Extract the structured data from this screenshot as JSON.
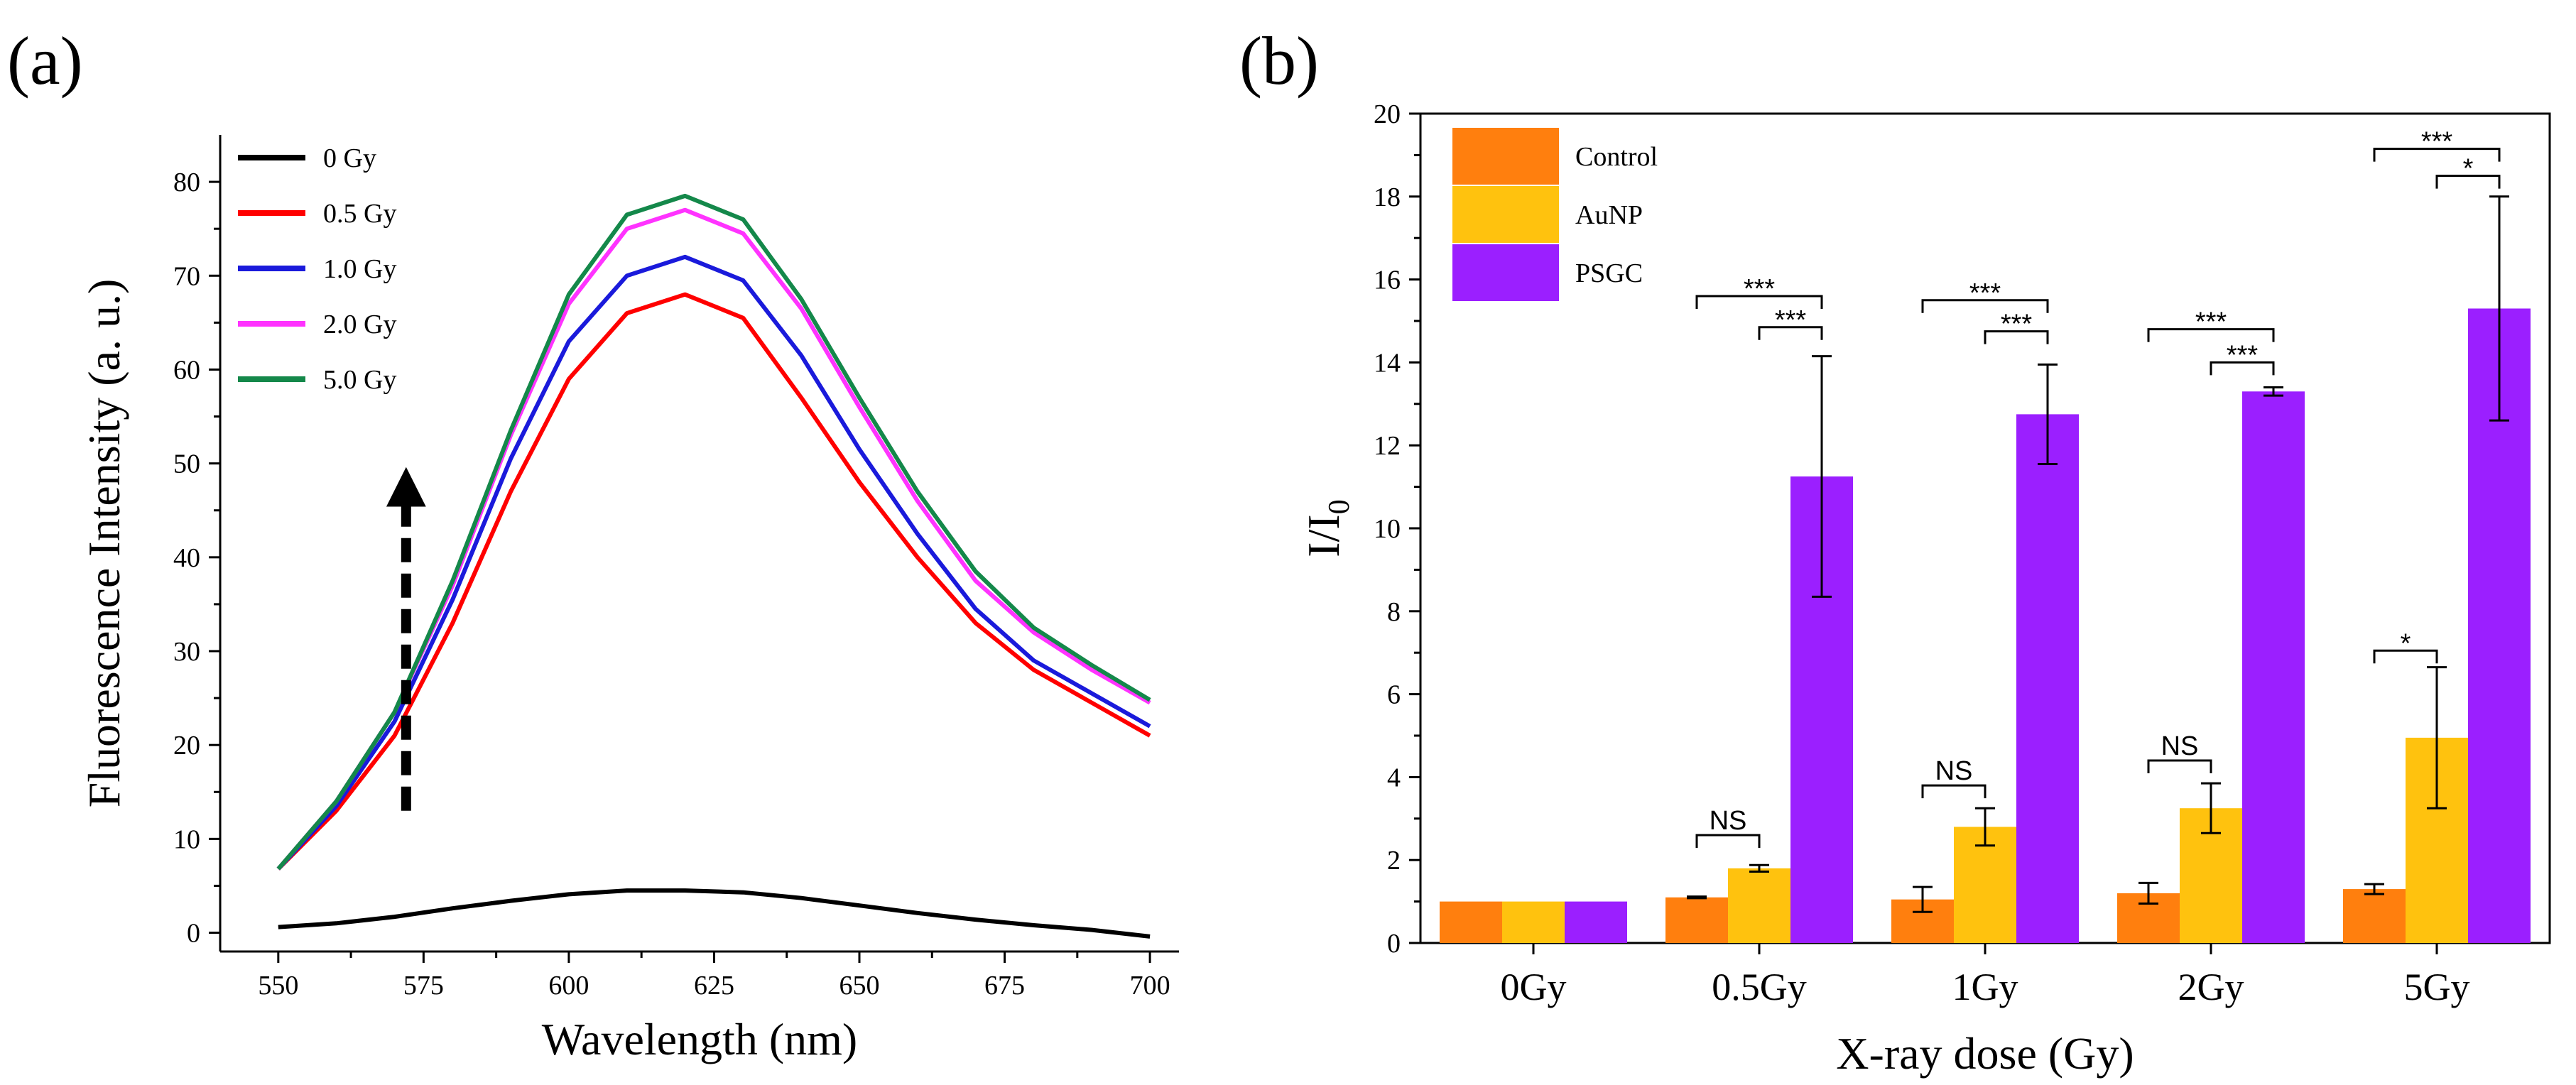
{
  "chart_data": [
    {
      "panel": "(a)",
      "type": "line",
      "xlabel": "Wavelength (nm)",
      "ylabel": "Fluorescence Intensity (a. u.)",
      "xlim": [
        540,
        705
      ],
      "ylim": [
        -2,
        85
      ],
      "xticks": [
        550,
        575,
        600,
        625,
        650,
        675,
        700
      ],
      "yticks": [
        0,
        10,
        20,
        30,
        40,
        50,
        60,
        70,
        80
      ],
      "legend_position": "top-left",
      "annotation": "dashed upward arrow at 572 nm from 13 to 49 (increasing dose)",
      "series": [
        {
          "name": "0 Gy",
          "color": "#000000",
          "x": [
            550,
            560,
            570,
            580,
            590,
            600,
            610,
            620,
            630,
            640,
            650,
            660,
            670,
            680,
            690,
            700
          ],
          "y": [
            0.6,
            1.0,
            1.7,
            2.6,
            3.4,
            4.1,
            4.5,
            4.5,
            4.3,
            3.7,
            2.9,
            2.1,
            1.4,
            0.8,
            0.3,
            -0.4
          ]
        },
        {
          "name": "0.5 Gy",
          "color": "#ff0000",
          "x": [
            550,
            560,
            570,
            580,
            590,
            600,
            610,
            620,
            630,
            640,
            650,
            660,
            670,
            680,
            690,
            700
          ],
          "y": [
            6.8,
            13.0,
            21.0,
            33.0,
            47.0,
            59.0,
            66.0,
            68.0,
            65.5,
            57.0,
            48.0,
            40.0,
            33.0,
            28.0,
            24.5,
            21.0
          ]
        },
        {
          "name": "1.0 Gy",
          "color": "#1a1adb",
          "x": [
            550,
            560,
            570,
            580,
            590,
            600,
            610,
            620,
            630,
            640,
            650,
            660,
            670,
            680,
            690,
            700
          ],
          "y": [
            6.8,
            13.5,
            22.5,
            35.5,
            50.5,
            63.0,
            70.0,
            72.0,
            69.5,
            61.5,
            51.5,
            42.5,
            34.5,
            29.0,
            25.5,
            22.0
          ]
        },
        {
          "name": "2.0 Gy",
          "color": "#ff33ff",
          "x": [
            550,
            560,
            570,
            580,
            590,
            600,
            610,
            620,
            630,
            640,
            650,
            660,
            670,
            680,
            690,
            700
          ],
          "y": [
            6.8,
            14.0,
            23.5,
            37.0,
            53.0,
            67.0,
            75.0,
            77.0,
            74.5,
            66.5,
            56.0,
            46.0,
            37.5,
            32.0,
            28.0,
            24.5
          ]
        },
        {
          "name": "5.0 Gy",
          "color": "#14884a",
          "x": [
            550,
            560,
            570,
            580,
            590,
            600,
            610,
            620,
            630,
            640,
            650,
            660,
            670,
            680,
            690,
            700
          ],
          "y": [
            6.8,
            14.0,
            23.5,
            37.5,
            53.5,
            68.0,
            76.5,
            78.5,
            76.0,
            67.5,
            57.0,
            47.0,
            38.5,
            32.5,
            28.5,
            24.8
          ]
        }
      ]
    },
    {
      "panel": "(b)",
      "type": "bar",
      "xlabel": "X-ray dose (Gy)",
      "ylabel": "I/I",
      "ylabel_subscript": "0",
      "ylim": [
        0,
        20
      ],
      "yticks": [
        0,
        2,
        4,
        6,
        8,
        10,
        12,
        14,
        16,
        18,
        20
      ],
      "categories": [
        "0Gy",
        "0.5Gy",
        "1Gy",
        "2Gy",
        "5Gy"
      ],
      "legend_position": "top-left",
      "series": [
        {
          "name": "Control",
          "color": "#ff7f0e",
          "values": [
            1.0,
            1.1,
            1.05,
            1.2,
            1.3
          ],
          "errors": [
            0.0,
            0.02,
            0.3,
            0.25,
            0.12
          ]
        },
        {
          "name": "AuNP",
          "color": "#ffc20e",
          "values": [
            1.0,
            1.8,
            2.8,
            3.25,
            4.95
          ],
          "errors": [
            0.0,
            0.08,
            0.45,
            0.6,
            1.7
          ]
        },
        {
          "name": "PSGC",
          "color": "#9b1fff",
          "values": [
            1.0,
            11.25,
            12.75,
            13.3,
            15.3
          ],
          "errors": [
            0.0,
            2.9,
            1.2,
            0.1,
            2.7
          ]
        }
      ],
      "significance": [
        {
          "category": 1,
          "pair": "Control-AuNP",
          "label": "NS",
          "y": 2.6
        },
        {
          "category": 1,
          "pair": "Control-PSGC",
          "label": "***",
          "y": 15.6
        },
        {
          "category": 1,
          "pair": "AuNP-PSGC",
          "label": "***",
          "y": 14.85
        },
        {
          "category": 2,
          "pair": "Control-AuNP",
          "label": "NS",
          "y": 3.8
        },
        {
          "category": 2,
          "pair": "Control-PSGC",
          "label": "***",
          "y": 15.5
        },
        {
          "category": 2,
          "pair": "AuNP-PSGC",
          "label": "***",
          "y": 14.75
        },
        {
          "category": 3,
          "pair": "Control-AuNP",
          "label": "NS",
          "y": 4.4
        },
        {
          "category": 3,
          "pair": "Control-PSGC",
          "label": "***",
          "y": 14.8
        },
        {
          "category": 3,
          "pair": "AuNP-PSGC",
          "label": "***",
          "y": 14.0
        },
        {
          "category": 4,
          "pair": "Control-AuNP",
          "label": "*",
          "y": 7.05
        },
        {
          "category": 4,
          "pair": "Control-PSGC",
          "label": "***",
          "y": 19.15
        },
        {
          "category": 4,
          "pair": "AuNP-PSGC",
          "label": "*",
          "y": 18.5
        }
      ]
    }
  ]
}
